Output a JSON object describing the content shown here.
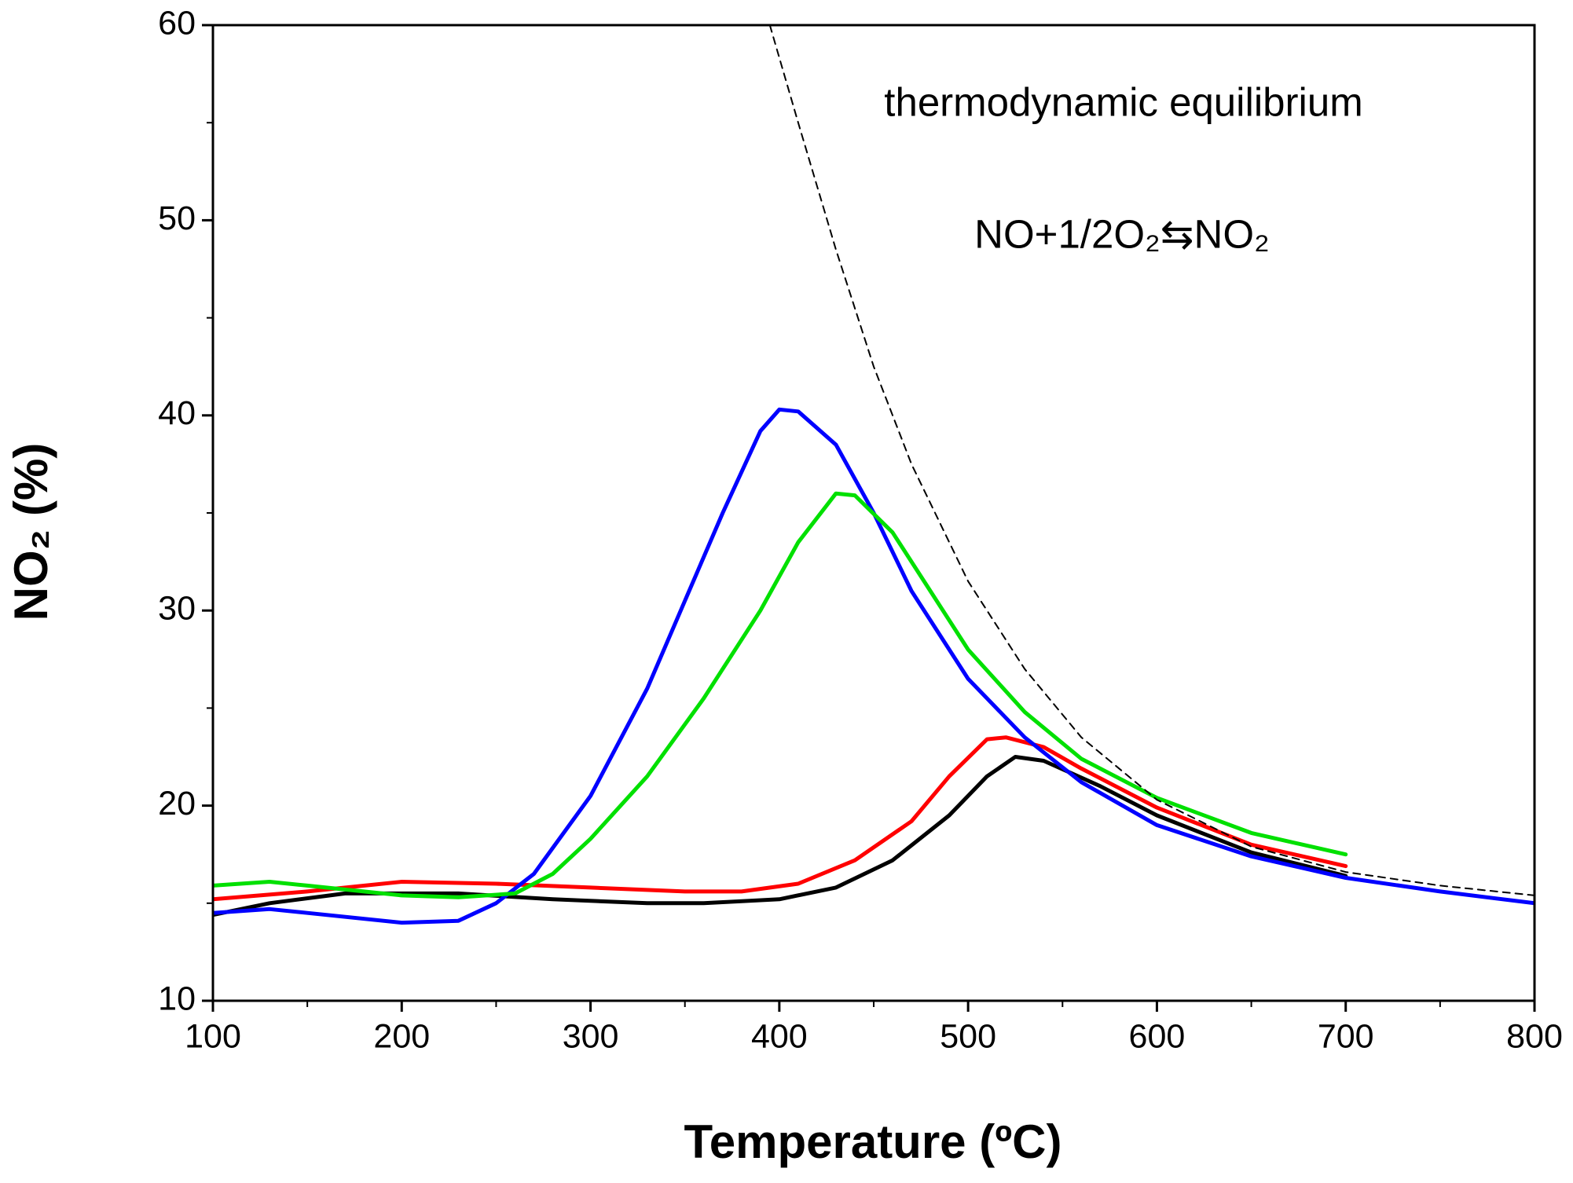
{
  "chart_data": {
    "type": "line",
    "xlabel": "Temperature (ºC)",
    "ylabel": "NO₂ (%)",
    "annotations": [
      "thermodynamic equilibrium",
      "NO+1/2O₂⇆NO₂"
    ],
    "xlim": [
      100,
      800
    ],
    "ylim": [
      10,
      60
    ],
    "xticks": [
      100,
      200,
      300,
      400,
      500,
      600,
      700,
      800
    ],
    "yticks": [
      10,
      20,
      30,
      40,
      50,
      60
    ],
    "xminorticks": [
      150,
      250,
      350,
      450,
      550,
      650,
      750
    ],
    "yminorticks": [
      15,
      25,
      35,
      45,
      55
    ],
    "series": [
      {
        "color": "#000000",
        "dashed": false,
        "x": [
          100,
          130,
          170,
          230,
          280,
          330,
          360,
          400,
          430,
          460,
          490,
          510,
          525,
          540,
          570,
          600,
          650,
          700
        ],
        "values": [
          14.4,
          15.0,
          15.5,
          15.5,
          15.2,
          15.0,
          15.0,
          15.2,
          15.8,
          17.2,
          19.5,
          21.5,
          22.5,
          22.3,
          21.0,
          19.5,
          17.6,
          16.4
        ]
      },
      {
        "color": "#ff0000",
        "dashed": false,
        "x": [
          100,
          150,
          200,
          250,
          300,
          350,
          380,
          410,
          440,
          470,
          490,
          510,
          520,
          540,
          560,
          600,
          650,
          700
        ],
        "values": [
          15.2,
          15.6,
          16.1,
          16.0,
          15.8,
          15.6,
          15.6,
          16.0,
          17.2,
          19.2,
          21.5,
          23.4,
          23.5,
          23.0,
          21.9,
          19.9,
          18.0,
          16.9
        ]
      },
      {
        "color": "#0000ff",
        "dashed": false,
        "x": [
          100,
          130,
          150,
          200,
          230,
          250,
          270,
          300,
          330,
          350,
          370,
          390,
          400,
          410,
          430,
          450,
          470,
          500,
          530,
          560,
          600,
          650,
          700,
          750,
          800
        ],
        "values": [
          14.5,
          14.7,
          14.5,
          14.0,
          14.1,
          15.0,
          16.5,
          20.5,
          26.0,
          30.5,
          35.0,
          39.2,
          40.3,
          40.2,
          38.5,
          35.0,
          31.0,
          26.5,
          23.5,
          21.2,
          19.0,
          17.4,
          16.3,
          15.6,
          15.0
        ]
      },
      {
        "color": "#00e000",
        "dashed": false,
        "x": [
          100,
          130,
          150,
          200,
          230,
          260,
          280,
          300,
          330,
          360,
          390,
          410,
          430,
          440,
          460,
          480,
          500,
          530,
          560,
          600,
          650,
          700
        ],
        "values": [
          15.9,
          16.1,
          15.9,
          15.4,
          15.3,
          15.5,
          16.5,
          18.3,
          21.5,
          25.5,
          30.0,
          33.5,
          36.0,
          35.9,
          34.0,
          31.0,
          28.0,
          24.8,
          22.4,
          20.4,
          18.6,
          17.5
        ]
      },
      {
        "color": "#000000",
        "dashed": true,
        "x": [
          395,
          410,
          430,
          450,
          470,
          500,
          530,
          560,
          600,
          650,
          700,
          750,
          800
        ],
        "values": [
          60,
          55,
          48.5,
          42.5,
          37.5,
          31.5,
          27.0,
          23.5,
          20.3,
          17.9,
          16.6,
          15.9,
          15.4
        ]
      }
    ]
  }
}
